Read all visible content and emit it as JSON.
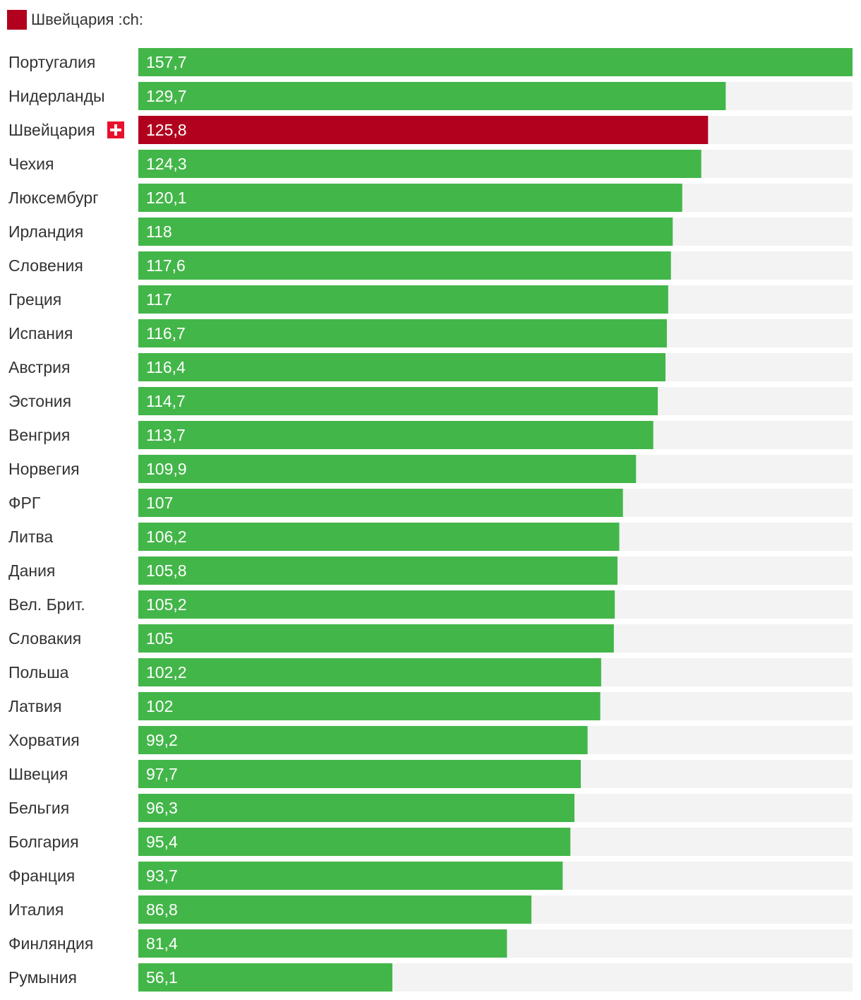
{
  "legend": {
    "label": "Швейцария :ch:",
    "color": "#b2001f"
  },
  "colors": {
    "bar": "#43b649",
    "highlight": "#b2001f",
    "track": "#f3f3f3",
    "value_text": "#ffffff",
    "label_text": "#333333"
  },
  "flag_icon": "swiss-flag-icon",
  "chart_data": {
    "type": "bar",
    "orientation": "horizontal",
    "title": "",
    "xlabel": "",
    "ylabel": "",
    "xlim": [
      0,
      157.7
    ],
    "highlight": "Швейцария",
    "categories": [
      "Португалия",
      "Нидерланды",
      "Швейцария",
      "Чехия",
      "Люксембург",
      "Ирландия",
      "Словения",
      "Греция",
      "Испания",
      "Австрия",
      "Эстония",
      "Венгрия",
      "Норвегия",
      "ФРГ",
      "Литва",
      "Дания",
      "Вел. Брит.",
      "Словакия",
      "Польша",
      "Латвия",
      "Хорватия",
      "Швеция",
      "Бельгия",
      "Болгария",
      "Франция",
      "Италия",
      "Финляндия",
      "Румыния"
    ],
    "values": [
      157.7,
      129.7,
      125.8,
      124.3,
      120.1,
      118,
      117.6,
      117,
      116.7,
      116.4,
      114.7,
      113.7,
      109.9,
      107,
      106.2,
      105.8,
      105.2,
      105,
      102.2,
      102,
      99.2,
      97.7,
      96.3,
      95.4,
      93.7,
      86.8,
      81.4,
      56.1
    ],
    "value_labels": [
      "157,7",
      "129,7",
      "125,8",
      "124,3",
      "120,1",
      "118",
      "117,6",
      "117",
      "116,7",
      "116,4",
      "114,7",
      "113,7",
      "109,9",
      "107",
      "106,2",
      "105,8",
      "105,2",
      "105",
      "102,2",
      "102",
      "99,2",
      "97,7",
      "96,3",
      "95,4",
      "93,7",
      "86,8",
      "81,4",
      "56,1"
    ]
  }
}
